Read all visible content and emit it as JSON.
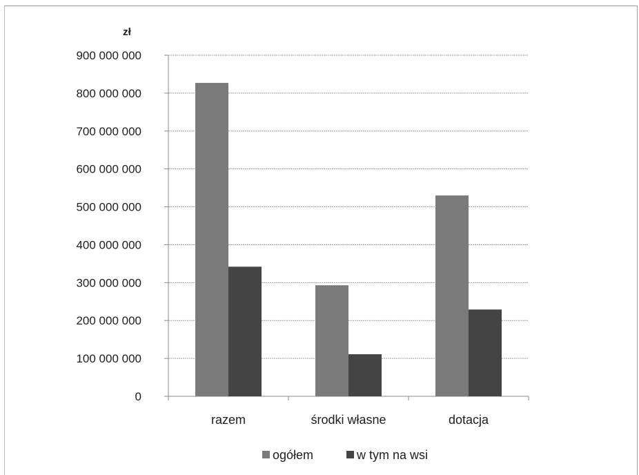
{
  "chart_data": {
    "type": "bar",
    "unit_label": "zł",
    "categories": [
      "razem",
      "środki własne",
      "dotacja"
    ],
    "series": [
      {
        "name": "ogółem",
        "color": "#7a7a7a",
        "values": [
          827000000,
          293000000,
          530000000
        ]
      },
      {
        "name": "w tym na wsi",
        "color": "#444444",
        "values": [
          342000000,
          111000000,
          229000000
        ]
      }
    ],
    "y_ticks": [
      {
        "value": 0,
        "label": "0"
      },
      {
        "value": 100000000,
        "label": "100 000 000"
      },
      {
        "value": 200000000,
        "label": "200 000 000"
      },
      {
        "value": 300000000,
        "label": "300 000 000"
      },
      {
        "value": 400000000,
        "label": "400 000 000"
      },
      {
        "value": 500000000,
        "label": "500 000 000"
      },
      {
        "value": 600000000,
        "label": "600 000 000"
      },
      {
        "value": 700000000,
        "label": "700 000 000"
      },
      {
        "value": 800000000,
        "label": "800 000 000"
      },
      {
        "value": 900000000,
        "label": "900 000 000"
      }
    ],
    "ylim": [
      0,
      900000000
    ],
    "grid": true,
    "legend_position": "bottom"
  }
}
